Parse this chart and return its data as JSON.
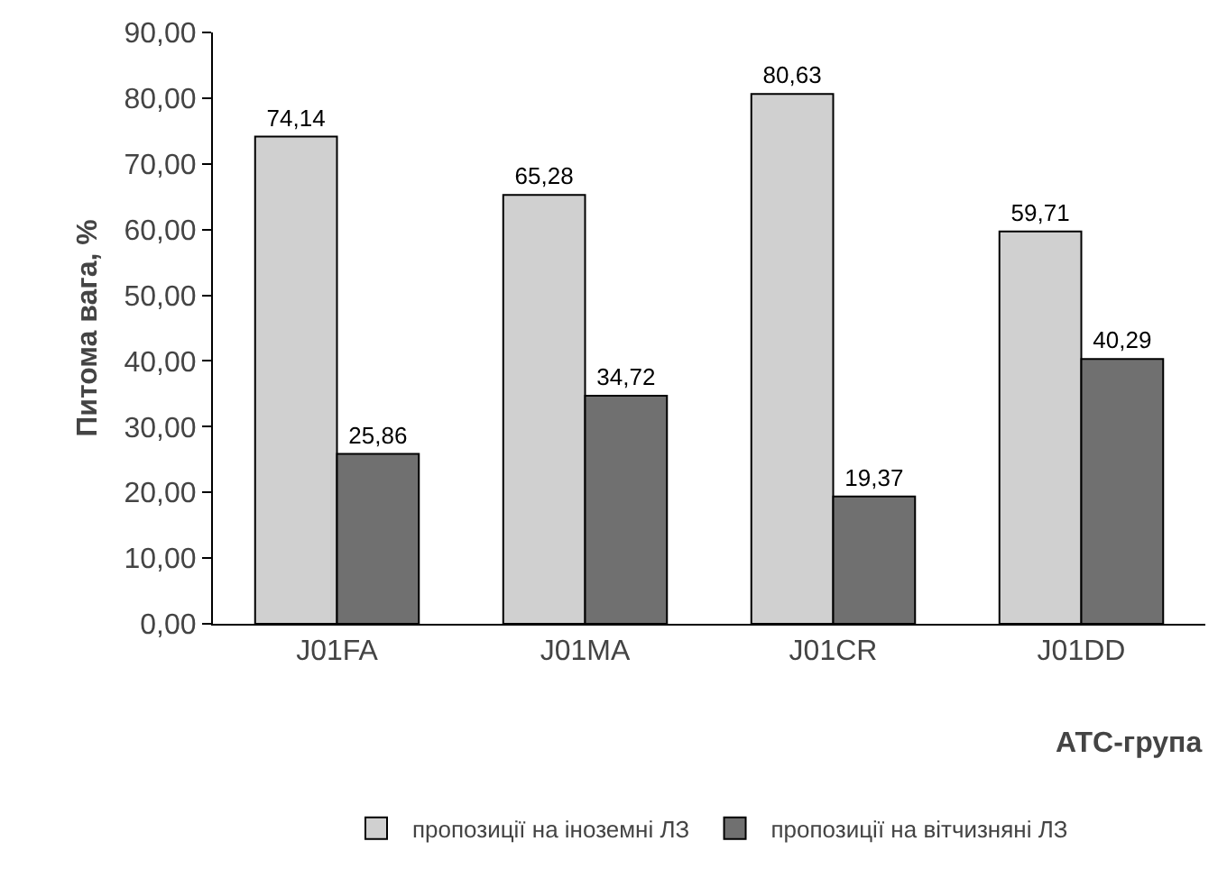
{
  "chart_data": {
    "type": "bar",
    "xlabel": "АТС-група",
    "ylabel": "Питома вага, %",
    "categories": [
      "J01FA",
      "J01MA",
      "J01CR",
      "J01DD"
    ],
    "series": [
      {
        "name": "пропозиції на іноземні ЛЗ",
        "color": "#d0d0d0",
        "values": [
          74.14,
          65.28,
          80.63,
          59.71
        ],
        "value_labels": [
          "74,14",
          "65,28",
          "80,63",
          "59,71"
        ]
      },
      {
        "name": "пропозиції на вітчизняні ЛЗ",
        "color": "#707070",
        "values": [
          25.86,
          34.72,
          19.37,
          40.29
        ],
        "value_labels": [
          "25,86",
          "34,72",
          "19,37",
          "40,29"
        ]
      }
    ],
    "ylim": [
      0,
      90
    ],
    "yticks": [
      {
        "value": 0,
        "label": "0,00"
      },
      {
        "value": 10,
        "label": "10,00"
      },
      {
        "value": 20,
        "label": "20,00"
      },
      {
        "value": 30,
        "label": "30,00"
      },
      {
        "value": 40,
        "label": "40,00"
      },
      {
        "value": 50,
        "label": "50,00"
      },
      {
        "value": 60,
        "label": "60,00"
      },
      {
        "value": 70,
        "label": "70,00"
      },
      {
        "value": 80,
        "label": "80,00"
      },
      {
        "value": 90,
        "label": "90,00"
      }
    ],
    "grid": false,
    "legend": "bottom"
  }
}
